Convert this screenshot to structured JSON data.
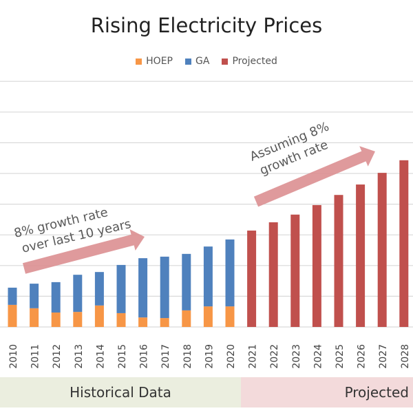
{
  "chart_data": {
    "type": "bar",
    "stacked": true,
    "title": "Rising Electricity Prices",
    "categories": [
      "2010",
      "2011",
      "2012",
      "2013",
      "2014",
      "2015",
      "2016",
      "2017",
      "2018",
      "2019",
      "2020",
      "2021",
      "2022",
      "2023",
      "2024",
      "2025",
      "2026",
      "2027",
      "2028"
    ],
    "series": [
      {
        "name": "HOEP",
        "color": "#f79646",
        "values": [
          0.72,
          0.61,
          0.47,
          0.49,
          0.7,
          0.45,
          0.31,
          0.29,
          0.54,
          0.67,
          0.67,
          0,
          0,
          0,
          0,
          0,
          0,
          0,
          0
        ]
      },
      {
        "name": "GA",
        "color": "#4f81bd",
        "values": [
          0.56,
          0.8,
          0.99,
          1.21,
          1.09,
          1.57,
          1.93,
          2.0,
          1.84,
          1.95,
          2.18,
          0,
          0,
          0,
          0,
          0,
          0,
          0,
          0
        ]
      },
      {
        "name": "Projected",
        "color": "#c0504d",
        "values": [
          0,
          0,
          0,
          0,
          0,
          0,
          0,
          0,
          0,
          0,
          0,
          3.14,
          3.41,
          3.66,
          3.97,
          4.3,
          4.64,
          5.02,
          5.43
        ]
      }
    ],
    "ylim": [
      0,
      8
    ],
    "y_axis_labels_shown": false,
    "grid": true,
    "legend_position": "top",
    "annotations": [
      {
        "text_lines": [
          "8% growth rate",
          "over last 10 years"
        ],
        "arrow_color": "#dc8f91"
      },
      {
        "text_lines": [
          "Assuming 8%",
          "growth rate"
        ],
        "arrow_color": "#dc8f91"
      }
    ]
  },
  "bands": {
    "historical": "Historical Data",
    "projected": "Projected"
  }
}
